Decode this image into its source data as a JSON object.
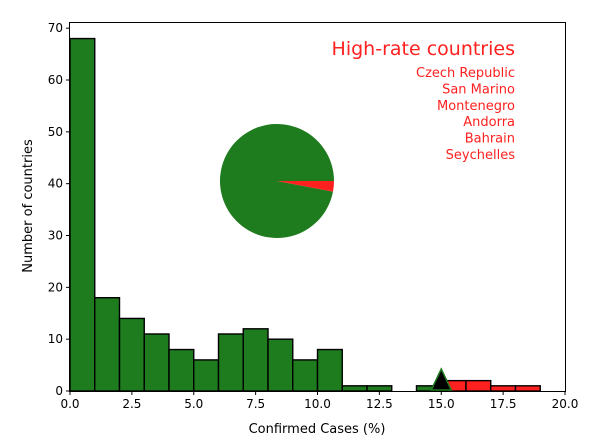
{
  "chart_data": {
    "type": "bar",
    "subtype": "histogram",
    "xlabel": "Confirmed Cases (%)",
    "ylabel": "Number of countries",
    "xlim": [
      0,
      20
    ],
    "ylim": [
      0,
      71
    ],
    "xticks": [
      "0.0",
      "2.5",
      "5.0",
      "7.5",
      "10.0",
      "12.5",
      "15.0",
      "17.5",
      "20.0"
    ],
    "xtick_values": [
      0,
      2.5,
      5,
      7.5,
      10,
      12.5,
      15,
      17.5,
      20
    ],
    "yticks": [
      "0",
      "10",
      "20",
      "30",
      "40",
      "50",
      "60",
      "70"
    ],
    "ytick_values": [
      0,
      10,
      20,
      30,
      40,
      50,
      60,
      70
    ],
    "grid": false,
    "bin_width": 1,
    "bins": [
      {
        "x": 0,
        "count": 68,
        "group": "normal"
      },
      {
        "x": 1,
        "count": 18,
        "group": "normal"
      },
      {
        "x": 2,
        "count": 14,
        "group": "normal"
      },
      {
        "x": 3,
        "count": 11,
        "group": "normal"
      },
      {
        "x": 4,
        "count": 8,
        "group": "normal"
      },
      {
        "x": 5,
        "count": 6,
        "group": "normal"
      },
      {
        "x": 6,
        "count": 11,
        "group": "normal"
      },
      {
        "x": 7,
        "count": 12,
        "group": "normal"
      },
      {
        "x": 8,
        "count": 10,
        "group": "normal"
      },
      {
        "x": 9,
        "count": 6,
        "group": "normal"
      },
      {
        "x": 10,
        "count": 8,
        "group": "normal"
      },
      {
        "x": 11,
        "count": 1,
        "group": "normal"
      },
      {
        "x": 12,
        "count": 1,
        "group": "normal"
      },
      {
        "x": 13,
        "count": 0,
        "group": "normal"
      },
      {
        "x": 14,
        "count": 1,
        "group": "normal"
      },
      {
        "x": 15,
        "count": 2,
        "group": "high"
      },
      {
        "x": 16,
        "count": 2,
        "group": "high"
      },
      {
        "x": 17,
        "count": 1,
        "group": "high"
      },
      {
        "x": 18,
        "count": 1,
        "group": "high"
      }
    ],
    "marker": {
      "x": 15,
      "y": 0,
      "shape": "triangle-up"
    },
    "pie": {
      "slices": [
        {
          "label": "normal",
          "fraction": 0.97
        },
        {
          "label": "high",
          "fraction": 0.03
        }
      ]
    },
    "annotation": {
      "title": "High-rate countries",
      "items": [
        "Czech Republic",
        "San Marino",
        "Montenegro",
        "Andorra",
        "Bahrain",
        "Seychelles"
      ],
      "placement": "top-right"
    },
    "colors": {
      "normal": "#1e7b1e",
      "high": "#ff2020",
      "text": "#ff2020",
      "marker": "#000000",
      "edge": "#000000"
    }
  }
}
